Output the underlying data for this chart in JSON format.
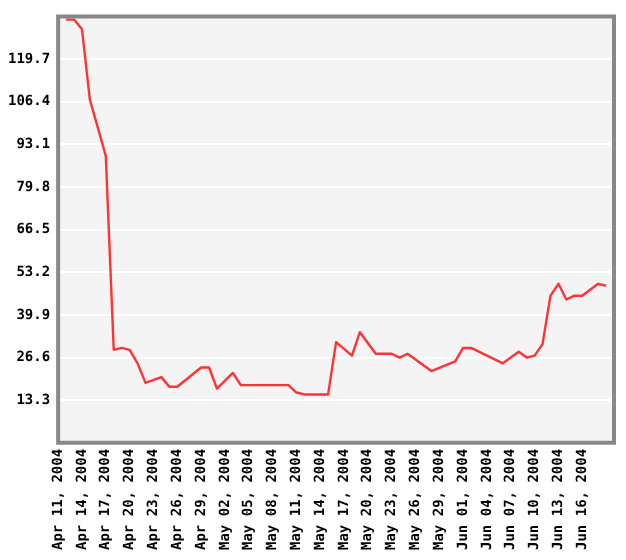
{
  "chart_data": {
    "type": "line",
    "color": "#ff3333",
    "marker": "none",
    "line_style": "solid",
    "grid": "y",
    "x": [
      "2004-04-12",
      "2004-04-13",
      "2004-04-14",
      "2004-04-15",
      "2004-04-17",
      "2004-04-18",
      "2004-04-19",
      "2004-04-20",
      "2004-04-21",
      "2004-04-22",
      "2004-04-24",
      "2004-04-25",
      "2004-04-26",
      "2004-04-29",
      "2004-04-30",
      "2004-05-01",
      "2004-05-03",
      "2004-05-04",
      "2004-05-10",
      "2004-05-11",
      "2004-05-12",
      "2004-05-15",
      "2004-05-16",
      "2004-05-18",
      "2004-05-19",
      "2004-05-21",
      "2004-05-23",
      "2004-05-24",
      "2004-05-25",
      "2004-05-28",
      "2004-05-31",
      "2004-06-01",
      "2004-06-02",
      "2004-06-04",
      "2004-06-06",
      "2004-06-08",
      "2004-06-09",
      "2004-06-10",
      "2004-06-11",
      "2004-06-12",
      "2004-06-13",
      "2004-06-14",
      "2004-06-15",
      "2004-06-16",
      "2004-06-18",
      "2004-06-19"
    ],
    "values": [
      132,
      132,
      129,
      107,
      89.5,
      29,
      29.6,
      29,
      24.8,
      18.7,
      20.5,
      17.5,
      17.5,
      23.5,
      23.5,
      16.9,
      21.8,
      18,
      18,
      15.7,
      15.1,
      15.1,
      31.4,
      27.2,
      34.5,
      27.8,
      27.8,
      26.6,
      27.8,
      22.4,
      25.4,
      29.6,
      29.6,
      27.2,
      24.8,
      28.4,
      26.6,
      27.2,
      30.8,
      45.9,
      49.6,
      44.7,
      45.9,
      45.9,
      49.6,
      49
    ],
    "xlim": [
      "2004-04-11",
      "2004-06-20"
    ],
    "xticks": [
      {
        "value": "2004-04-11",
        "label": "Apr 11, 2004"
      },
      {
        "value": "2004-04-14",
        "label": "Apr 14, 2004"
      },
      {
        "value": "2004-04-17",
        "label": "Apr 17, 2004"
      },
      {
        "value": "2004-04-20",
        "label": "Apr 20, 2004"
      },
      {
        "value": "2004-04-23",
        "label": "Apr 23, 2004"
      },
      {
        "value": "2004-04-26",
        "label": "Apr 26, 2004"
      },
      {
        "value": "2004-04-29",
        "label": "Apr 29, 2004"
      },
      {
        "value": "2004-05-02",
        "label": "May 02, 2004"
      },
      {
        "value": "2004-05-05",
        "label": "May 05, 2004"
      },
      {
        "value": "2004-05-08",
        "label": "May 08, 2004"
      },
      {
        "value": "2004-05-11",
        "label": "May 11, 2004"
      },
      {
        "value": "2004-05-14",
        "label": "May 14, 2004"
      },
      {
        "value": "2004-05-17",
        "label": "May 17, 2004"
      },
      {
        "value": "2004-05-20",
        "label": "May 20, 2004"
      },
      {
        "value": "2004-05-23",
        "label": "May 23, 2004"
      },
      {
        "value": "2004-05-26",
        "label": "May 26, 2004"
      },
      {
        "value": "2004-05-29",
        "label": "May 29, 2004"
      },
      {
        "value": "2004-06-01",
        "label": "Jun 01, 2004"
      },
      {
        "value": "2004-06-04",
        "label": "Jun 04, 2004"
      },
      {
        "value": "2004-06-07",
        "label": "Jun 07, 2004"
      },
      {
        "value": "2004-06-10",
        "label": "Jun 10, 2004"
      },
      {
        "value": "2004-06-13",
        "label": "Jun 13, 2004"
      },
      {
        "value": "2004-06-16",
        "label": "Jun 16, 2004"
      }
    ],
    "ylim": [
      0,
      133
    ],
    "yticks": [
      13.3,
      26.6,
      39.9,
      53.2,
      66.5,
      79.8,
      93.1,
      106.4,
      119.7
    ]
  }
}
